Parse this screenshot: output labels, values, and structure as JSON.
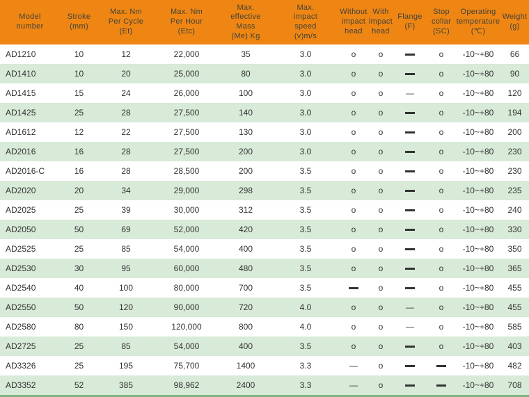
{
  "colors": {
    "header_orange": "#ef8613",
    "row_alt_green": "#d8ead8",
    "bottom_border_green": "#82b482",
    "body_text": "#333333"
  },
  "symbols": {
    "available": "o",
    "not_available_thin_dash": "—",
    "not_available_heavy_dash": "━"
  },
  "table": {
    "columns": [
      {
        "key": "model",
        "label": "Model\nnumber"
      },
      {
        "key": "stroke_mm",
        "label": "Stroke\n(mm)"
      },
      {
        "key": "max_nm_per_cycle",
        "label": "Max. Nm\nPer Cycle\n(Et)"
      },
      {
        "key": "max_nm_per_hour",
        "label": "Max. Nm\nPer Hour\n(Etc)"
      },
      {
        "key": "max_effective_mass",
        "label": "Max.\neffective\nMass\n(Me) Kg"
      },
      {
        "key": "max_impact_speed",
        "label": "Max.\nimpact\nspeed\n(v)m/s"
      },
      {
        "key": "without_impact_head",
        "label": "Without\nimpact\nhead"
      },
      {
        "key": "with_impact_head",
        "label": "With\nimpact\nhead"
      },
      {
        "key": "flange",
        "label": "Flange\n(F)"
      },
      {
        "key": "stop_collar",
        "label": "Stop\ncollar\n(SC)"
      },
      {
        "key": "operating_temperature",
        "label": "Operating\ntemperature\n(℃)"
      },
      {
        "key": "weight",
        "label": "Weight\n(g)"
      }
    ],
    "rows": [
      [
        "AD1210",
        "10",
        "12",
        "22,000",
        "35",
        "3.0",
        "o",
        "o",
        "━",
        "o",
        "-10~+80",
        "66"
      ],
      [
        "AD1410",
        "10",
        "20",
        "25,000",
        "80",
        "3.0",
        "o",
        "o",
        "━",
        "o",
        "-10~+80",
        "90"
      ],
      [
        "AD1415",
        "15",
        "24",
        "26,000",
        "100",
        "3.0",
        "o",
        "o",
        "—",
        "o",
        "-10~+80",
        "120"
      ],
      [
        "AD1425",
        "25",
        "28",
        "27,500",
        "140",
        "3.0",
        "o",
        "o",
        "━",
        "o",
        "-10~+80",
        "194"
      ],
      [
        "AD1612",
        "12",
        "22",
        "27,500",
        "130",
        "3.0",
        "o",
        "o",
        "━",
        "o",
        "-10~+80",
        "200"
      ],
      [
        "AD2016",
        "16",
        "28",
        "27,500",
        "200",
        "3.0",
        "o",
        "o",
        "━",
        "o",
        "-10~+80",
        "230"
      ],
      [
        "AD2016-C",
        "16",
        "28",
        "28,500",
        "200",
        "3.5",
        "o",
        "o",
        "━",
        "o",
        "-10~+80",
        "230"
      ],
      [
        "AD2020",
        "20",
        "34",
        "29,000",
        "298",
        "3.5",
        "o",
        "o",
        "━",
        "o",
        "-10~+80",
        "235"
      ],
      [
        "AD2025",
        "25",
        "39",
        "30,000",
        "312",
        "3.5",
        "o",
        "o",
        "━",
        "o",
        "-10~+80",
        "240"
      ],
      [
        "AD2050",
        "50",
        "69",
        "52,000",
        "420",
        "3.5",
        "o",
        "o",
        "━",
        "o",
        "-10~+80",
        "330"
      ],
      [
        "AD2525",
        "25",
        "85",
        "54,000",
        "400",
        "3.5",
        "o",
        "o",
        "━",
        "o",
        "-10~+80",
        "350"
      ],
      [
        "AD2530",
        "30",
        "95",
        "60,000",
        "480",
        "3.5",
        "o",
        "o",
        "━",
        "o",
        "-10~+80",
        "365"
      ],
      [
        "AD2540",
        "40",
        "100",
        "80,000",
        "700",
        "3.5",
        "━",
        "o",
        "━",
        "o",
        "-10~+80",
        "455"
      ],
      [
        "AD2550",
        "50",
        "120",
        "90,000",
        "720",
        "4.0",
        "o",
        "o",
        "—",
        "o",
        "-10~+80",
        "455"
      ],
      [
        "AD2580",
        "80",
        "150",
        "120,000",
        "800",
        "4.0",
        "o",
        "o",
        "—",
        "o",
        "-10~+80",
        "585"
      ],
      [
        "AD2725",
        "25",
        "85",
        "54,000",
        "400",
        "3.5",
        "o",
        "o",
        "━",
        "o",
        "-10~+80",
        "403"
      ],
      [
        "AD3326",
        "25",
        "195",
        "75,700",
        "1400",
        "3.3",
        "—",
        "o",
        "━",
        "━",
        "-10~+80",
        "482"
      ],
      [
        "AD3352",
        "52",
        "385",
        "98,962",
        "2400",
        "3.3",
        "—",
        "o",
        "━",
        "━",
        "-10~+80",
        "708"
      ]
    ]
  }
}
